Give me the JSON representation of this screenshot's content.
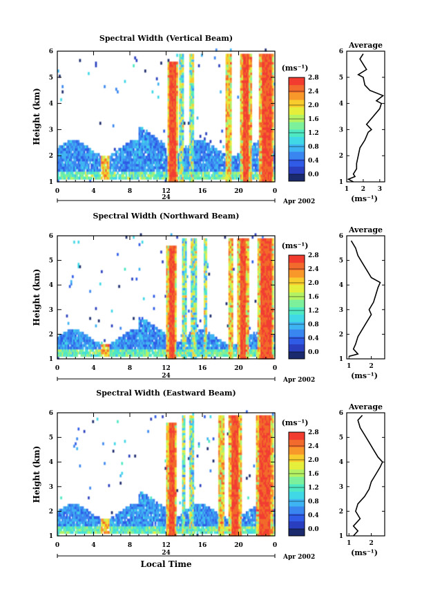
{
  "chart_data": [
    {
      "type": "heatmap",
      "title": "Spectral Width (Vertical Beam)",
      "ylabel": "Height (km)",
      "xlabel": "",
      "xticks": [
        "0",
        "4",
        "8",
        "12",
        "16",
        "20",
        "0"
      ],
      "xlim": [
        0,
        24
      ],
      "yticks": [
        "1",
        "2",
        "3",
        "4",
        "5",
        "6"
      ],
      "ylim": [
        1,
        6
      ],
      "date_tick": "24",
      "date_label": "Apr 2002",
      "colorbar": {
        "unit": "(ms⁻¹)",
        "ticks": [
          "0.0",
          "0.4",
          "0.8",
          "1.2",
          "1.6",
          "2.0",
          "2.4",
          "2.8"
        ],
        "range": [
          0,
          3.0
        ]
      },
      "average": {
        "title": "Average",
        "xlabel": "(ms⁻¹)",
        "xticks": [
          "1",
          "2",
          "3"
        ],
        "xlim": [
          1,
          3.3
        ],
        "heights": [
          1.0,
          1.1,
          1.2,
          1.3,
          1.5,
          1.7,
          2.0,
          2.3,
          2.6,
          2.9,
          3.0,
          3.2,
          3.5,
          3.8,
          4.0,
          4.1,
          4.3,
          4.5,
          4.7,
          5.0,
          5.1,
          5.3,
          5.5,
          5.7,
          5.9
        ],
        "values": [
          1.4,
          1.1,
          1.5,
          1.4,
          1.6,
          1.6,
          1.7,
          1.8,
          2.1,
          2.3,
          2.5,
          2.2,
          2.6,
          3.0,
          3.1,
          2.8,
          3.2,
          2.4,
          2.1,
          2.0,
          1.7,
          2.2,
          2.0,
          1.8,
          2.0
        ]
      }
    },
    {
      "type": "heatmap",
      "title": "Spectral Width (Northward Beam)",
      "ylabel": "Height (km)",
      "xlabel": "",
      "xticks": [
        "0",
        "4",
        "8",
        "12",
        "16",
        "20",
        "0"
      ],
      "xlim": [
        0,
        24
      ],
      "yticks": [
        "1",
        "2",
        "3",
        "4",
        "5",
        "6"
      ],
      "ylim": [
        1,
        6
      ],
      "date_tick": "24",
      "date_label": "Apr 2002",
      "colorbar": {
        "unit": "(ms⁻¹)",
        "ticks": [
          "0.0",
          "0.4",
          "0.8",
          "1.2",
          "1.6",
          "2.0",
          "2.4",
          "2.8"
        ],
        "range": [
          0,
          3.0
        ]
      },
      "average": {
        "title": "Average",
        "xlabel": "(ms⁻¹)",
        "xticks": [
          "1",
          "2"
        ],
        "xlim": [
          0.9,
          2.6
        ],
        "heights": [
          1.1,
          1.2,
          1.4,
          1.6,
          1.9,
          2.2,
          2.5,
          2.8,
          3.0,
          3.3,
          3.6,
          3.9,
          4.1,
          4.3,
          4.6,
          4.9,
          5.2,
          5.5,
          5.8
        ],
        "values": [
          1.0,
          1.4,
          1.2,
          1.3,
          1.4,
          1.6,
          1.8,
          2.0,
          1.9,
          2.1,
          2.2,
          2.3,
          2.4,
          2.0,
          1.8,
          1.6,
          1.4,
          1.3,
          1.1
        ]
      }
    },
    {
      "type": "heatmap",
      "title": "Spectral Width (Eastward Beam)",
      "ylabel": "Height (km)",
      "xlabel": "Local Time",
      "xticks": [
        "0",
        "4",
        "8",
        "12",
        "16",
        "20",
        "0"
      ],
      "xlim": [
        0,
        24
      ],
      "yticks": [
        "1",
        "2",
        "3",
        "4",
        "5",
        "6"
      ],
      "ylim": [
        1,
        6
      ],
      "date_tick": "24",
      "date_label": "Apr 2002",
      "colorbar": {
        "unit": "(ms⁻¹)",
        "ticks": [
          "0.0",
          "0.4",
          "0.8",
          "1.2",
          "1.6",
          "2.0",
          "2.4",
          "2.8"
        ],
        "range": [
          0,
          3.0
        ]
      },
      "average": {
        "title": "Average",
        "xlabel": "(ms⁻¹)",
        "xticks": [
          "1",
          "2"
        ],
        "xlim": [
          0.9,
          2.6
        ],
        "heights": [
          1.0,
          1.2,
          1.4,
          1.7,
          2.0,
          2.3,
          2.6,
          2.9,
          3.2,
          3.5,
          3.8,
          4.0,
          4.2,
          4.5,
          4.8,
          5.1,
          5.4,
          5.7,
          5.9
        ],
        "values": [
          1.2,
          1.4,
          1.2,
          1.5,
          1.3,
          1.4,
          1.7,
          1.9,
          2.0,
          2.2,
          2.4,
          2.5,
          2.3,
          2.1,
          1.9,
          1.7,
          1.5,
          1.4,
          1.6
        ]
      }
    }
  ],
  "colors": {
    "palette": [
      "#1a2a6c",
      "#2a3fbf",
      "#2f5be6",
      "#3a86f0",
      "#3fb4f2",
      "#40d8e6",
      "#4ee8c2",
      "#7cf09a",
      "#b4f264",
      "#e6ee3c",
      "#f8cc2c",
      "#f8982a",
      "#f26a2c",
      "#f23c30"
    ],
    "line": "#000000"
  }
}
